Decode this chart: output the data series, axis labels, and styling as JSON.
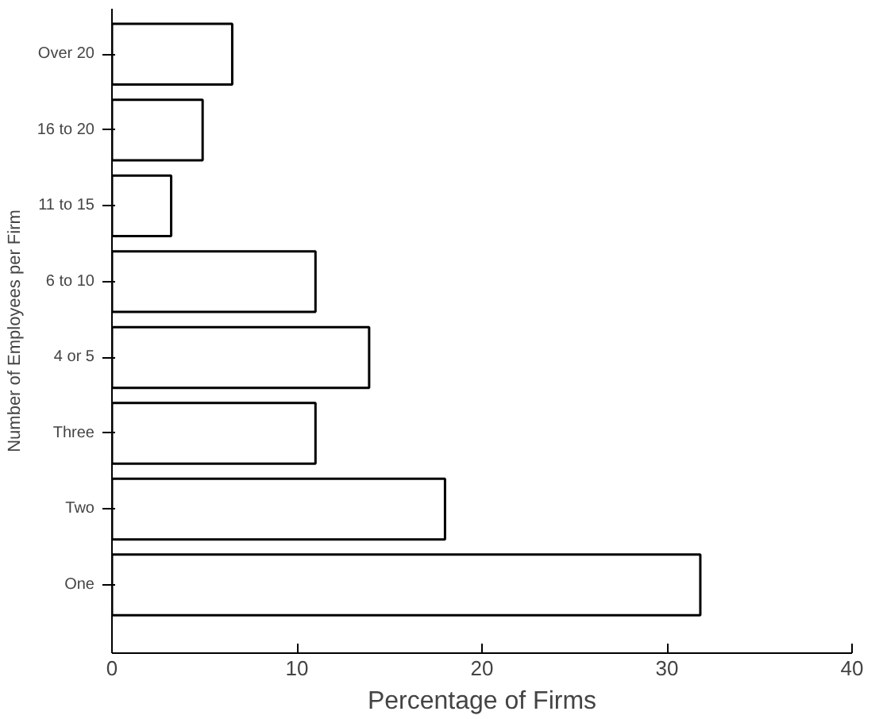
{
  "chart_data": {
    "type": "bar",
    "orientation": "horizontal",
    "categories": [
      "Over 20",
      "16 to 20",
      "11 to 15",
      "6 to 10",
      "4 or 5",
      "Three",
      "Two",
      "One"
    ],
    "values": [
      6.5,
      4.9,
      3.2,
      11.0,
      13.9,
      11.0,
      18.0,
      31.8
    ],
    "color": "#ffffff",
    "xlabel": "Percentage of Firms",
    "ylabel": "Number of Employees per Firm",
    "xlim": [
      0,
      40
    ],
    "xticks": [
      0,
      10,
      20,
      30,
      40
    ],
    "grid": false
  }
}
